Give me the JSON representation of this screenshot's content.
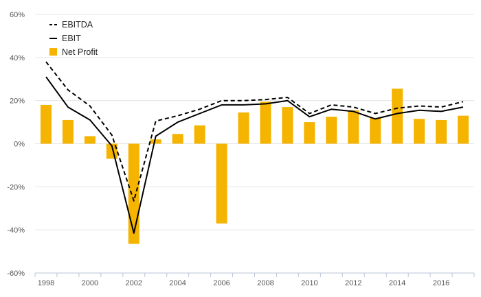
{
  "chart_data": {
    "type": "bar",
    "categories": [
      "1998",
      "1999",
      "2000",
      "2001",
      "2002",
      "2003",
      "2004",
      "2005",
      "2006",
      "2007",
      "2008",
      "2009",
      "2010",
      "2011",
      "2012",
      "2013",
      "2014",
      "2015",
      "2016",
      "2017"
    ],
    "x_tick_labels": [
      "1998",
      "2000",
      "2002",
      "2004",
      "2006",
      "2008",
      "2010",
      "2012",
      "2014",
      "2016"
    ],
    "y_ticks": [
      60,
      40,
      20,
      0,
      -20,
      -40,
      -60
    ],
    "y_tick_labels": [
      "60%",
      "40%",
      "20%",
      "0%",
      "-20%",
      "-40%",
      "-60%"
    ],
    "ylim": [
      -60,
      60
    ],
    "ylabel": "",
    "xlabel": "",
    "title": "",
    "grid": true,
    "legend_position": "top-left",
    "series": [
      {
        "name": "EBITDA",
        "kind": "line",
        "style": "dashed",
        "color": "#000000",
        "values": [
          38,
          25,
          17.5,
          4,
          -26.5,
          10.5,
          13,
          16,
          20,
          20,
          20.5,
          21.5,
          14,
          18,
          17,
          14,
          16.5,
          17.5,
          17,
          19.5
        ]
      },
      {
        "name": "EBIT",
        "kind": "line",
        "style": "solid",
        "color": "#000000",
        "values": [
          31,
          17,
          11,
          -1,
          -41.5,
          3.5,
          10,
          14,
          18,
          18,
          18.5,
          20,
          12.5,
          16,
          15,
          11.5,
          14,
          15.5,
          15,
          17
        ]
      },
      {
        "name": "Net Profit",
        "kind": "bar",
        "color": "#f5b400",
        "values": [
          18,
          11,
          3.5,
          -7,
          -46.5,
          2,
          4.5,
          8.5,
          -37,
          14.5,
          19.5,
          17,
          10,
          12.5,
          15.5,
          12,
          25.5,
          11.5,
          11,
          13
        ]
      }
    ]
  }
}
